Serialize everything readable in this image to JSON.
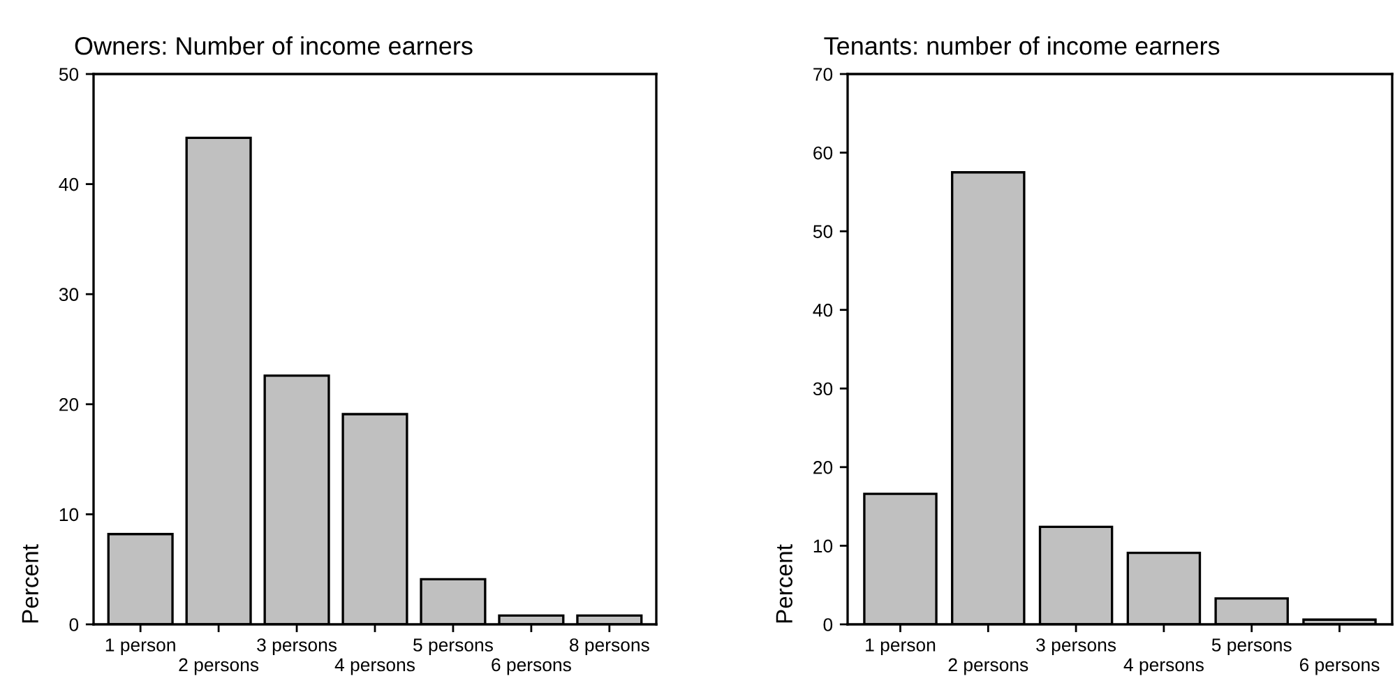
{
  "chart_data": [
    {
      "type": "bar",
      "title": "Owners: Number of income earners",
      "ylabel": "Percent",
      "categories": [
        "1 person",
        "2 persons",
        "3 persons",
        "4 persons",
        "5 persons",
        "6 persons",
        "8 persons"
      ],
      "values": [
        8.2,
        44.2,
        22.6,
        19.1,
        4.1,
        0.8,
        0.8
      ],
      "color": "#c0c0c0",
      "ylim": [
        0,
        50
      ],
      "yticks": [
        0,
        10,
        20,
        30,
        40,
        50
      ],
      "grid": false
    },
    {
      "type": "bar",
      "title": "Tenants: number of income earners",
      "ylabel": "Percent",
      "categories": [
        "1 person",
        "2 persons",
        "3 persons",
        "4 persons",
        "5 persons",
        "6 persons"
      ],
      "values": [
        16.6,
        57.5,
        12.4,
        9.1,
        3.3,
        0.6
      ],
      "color": "#c0c0c0",
      "ylim": [
        0,
        70
      ],
      "yticks": [
        0,
        10,
        20,
        30,
        40,
        50,
        60,
        70
      ],
      "grid": false
    }
  ]
}
